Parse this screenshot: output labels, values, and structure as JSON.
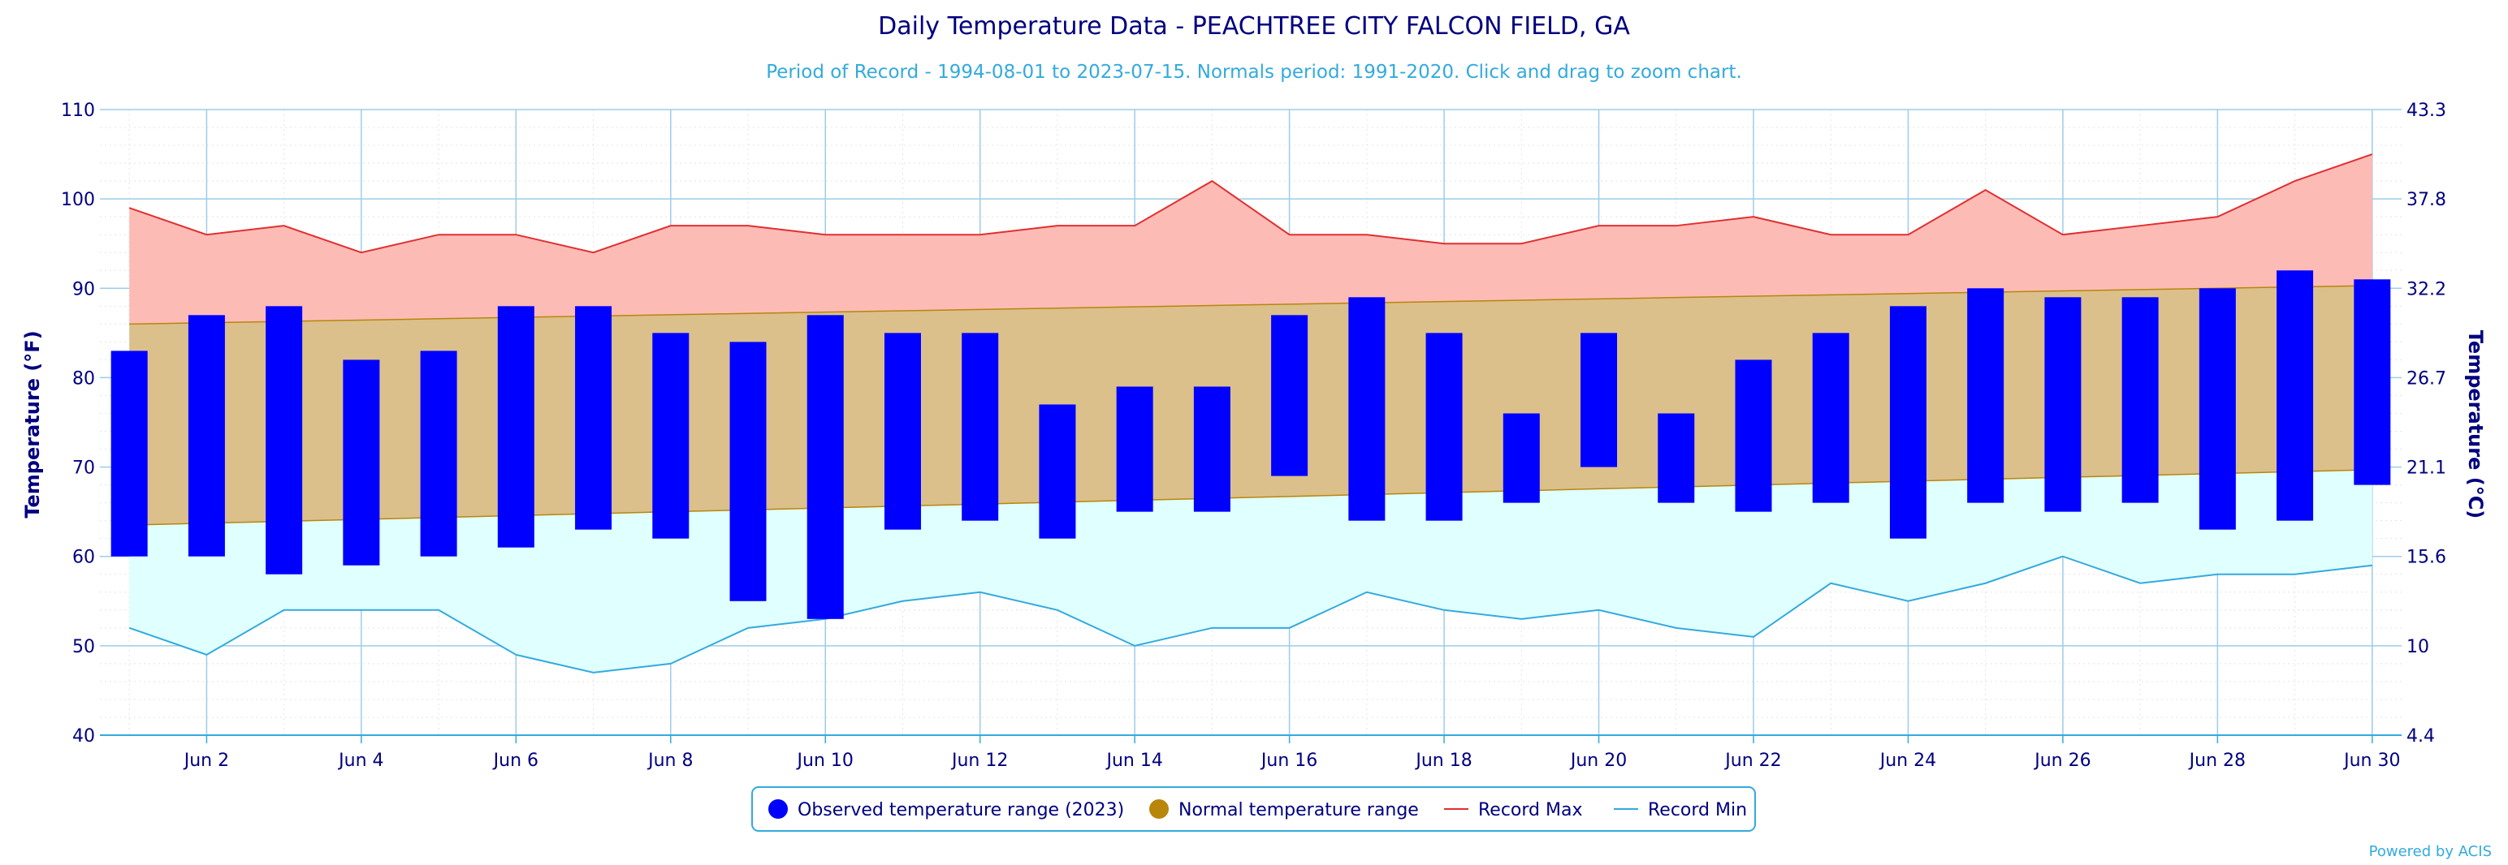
{
  "chart_data": {
    "type": "bar",
    "title": "Daily Temperature Data - PEACHTREE CITY FALCON FIELD, GA",
    "subtitle": "Period of Record - 1994-08-01 to 2023-07-15. Normals period: 1991-2020. Click and drag to zoom chart.",
    "xlabel": "",
    "ylabel": "Temperature (°F)",
    "ylabel_right": "Temperature (°C)",
    "ylim": [
      40,
      110
    ],
    "y_ticks": [
      40,
      50,
      60,
      70,
      80,
      90,
      100,
      110
    ],
    "y_ticks_right": [
      "4.4",
      "10",
      "15.6",
      "21.1",
      "26.7",
      "32.2",
      "37.8",
      "43.3"
    ],
    "days": [
      1,
      2,
      3,
      4,
      5,
      6,
      7,
      8,
      9,
      10,
      11,
      12,
      13,
      14,
      15,
      16,
      17,
      18,
      19,
      20,
      21,
      22,
      23,
      24,
      25,
      26,
      27,
      28,
      29,
      30
    ],
    "x_tick_labels": [
      "Jun 2",
      "Jun 4",
      "Jun 6",
      "Jun 8",
      "Jun 10",
      "Jun 12",
      "Jun 14",
      "Jun 16",
      "Jun 18",
      "Jun 20",
      "Jun 22",
      "Jun 24",
      "Jun 26",
      "Jun 28",
      "Jun 30"
    ],
    "x_tick_days": [
      2,
      4,
      6,
      8,
      10,
      12,
      14,
      16,
      18,
      20,
      22,
      24,
      26,
      28,
      30
    ],
    "grid": true,
    "legend_position": "bottom-center",
    "series": [
      {
        "name": "Observed temperature range (2023)",
        "color": "#0000ff",
        "low": [
          60,
          60,
          58,
          59,
          60,
          61,
          63,
          62,
          55,
          53,
          63,
          64,
          62,
          65,
          65,
          69,
          64,
          64,
          66,
          70,
          66,
          65,
          66,
          62,
          66,
          65,
          66,
          63,
          64,
          68
        ],
        "high": [
          83,
          87,
          88,
          82,
          83,
          88,
          88,
          85,
          84,
          87,
          85,
          85,
          77,
          79,
          79,
          87,
          89,
          85,
          76,
          85,
          76,
          82,
          85,
          88,
          90,
          89,
          89,
          90,
          92,
          91
        ]
      },
      {
        "name": "Normal temperature range",
        "color": "#b8860b",
        "fill": "#dbc08b",
        "low_start": 63.5,
        "low_end": 69.7,
        "high_start": 86.0,
        "high_end": 90.3
      },
      {
        "name": "Record Max",
        "color": "#e03030",
        "fill": "#fdbbb6",
        "values": [
          99,
          96,
          97,
          94,
          96,
          96,
          94,
          97,
          97,
          96,
          96,
          96,
          97,
          97,
          102,
          96,
          96,
          95,
          95,
          97,
          97,
          98,
          96,
          96,
          101,
          96,
          97,
          98,
          102,
          105
        ]
      },
      {
        "name": "Record Min",
        "color": "#33aadd",
        "fill": "#e0ffff",
        "values": [
          52,
          49,
          54,
          54,
          54,
          49,
          47,
          48,
          52,
          53,
          55,
          56,
          54,
          50,
          52,
          52,
          56,
          54,
          53,
          54,
          52,
          51,
          57,
          55,
          57,
          60,
          57,
          58,
          58,
          59
        ]
      }
    ]
  },
  "credits": "Powered by ACIS"
}
